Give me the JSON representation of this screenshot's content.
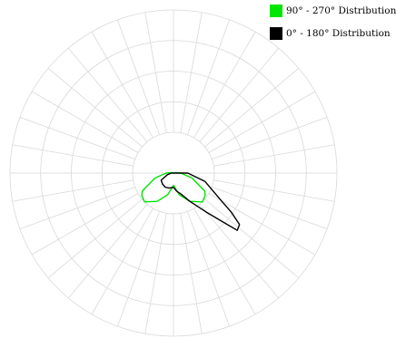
{
  "chart_data": {
    "type": "polar",
    "title": "",
    "grid": true,
    "angular_grid_step_deg": 10,
    "radial_rings": 5,
    "legend_position": "top-right",
    "series": [
      {
        "name": "90° - 270° Distribution",
        "color": "#00e600",
        "points": [
          [
            0,
            0.3
          ],
          [
            15,
            0.55
          ],
          [
            30,
            0.8
          ],
          [
            45,
            1.0
          ],
          [
            55,
            0.95
          ],
          [
            60,
            0.88
          ],
          [
            75,
            0.47
          ],
          [
            90,
            0.18
          ],
          [
            105,
            0.05
          ],
          [
            115,
            0.0
          ],
          [
            180,
            0.0
          ],
          [
            245,
            0.0
          ],
          [
            255,
            0.05
          ],
          [
            270,
            0.18
          ],
          [
            285,
            0.47
          ],
          [
            300,
            0.88
          ],
          [
            305,
            0.95
          ],
          [
            315,
            1.0
          ],
          [
            330,
            0.8
          ],
          [
            345,
            0.55
          ],
          [
            360,
            0.3
          ]
        ]
      },
      {
        "name": "0° - 180° Distribution",
        "color": "#000000",
        "points": [
          [
            0,
            0.35
          ],
          [
            10,
            0.45
          ],
          [
            20,
            0.55
          ],
          [
            30,
            0.8
          ],
          [
            40,
            1.25
          ],
          [
            48,
            2.1
          ],
          [
            52,
            2.05
          ],
          [
            56,
            1.7
          ],
          [
            60,
            1.35
          ],
          [
            75,
            0.8
          ],
          [
            90,
            0.35
          ],
          [
            110,
            0.0
          ],
          [
            250,
            0.0
          ],
          [
            270,
            0.05
          ],
          [
            285,
            0.15
          ],
          [
            300,
            0.35
          ],
          [
            315,
            0.38
          ],
          [
            330,
            0.4
          ],
          [
            345,
            0.38
          ],
          [
            360,
            0.35
          ]
        ]
      }
    ]
  }
}
